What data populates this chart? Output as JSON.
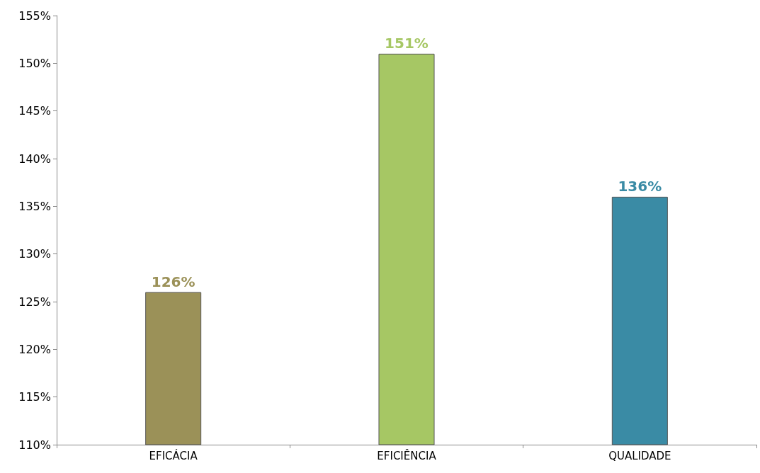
{
  "chart_data": {
    "type": "bar",
    "categories": [
      "EFICÁCIA",
      "EFICIÊNCIA",
      "QUALIDADE"
    ],
    "values": [
      126,
      151,
      136
    ],
    "colors": [
      "#9b9158",
      "#a6c764",
      "#3a8ba5"
    ],
    "value_labels": [
      "126%",
      "151%",
      "136%"
    ],
    "ylim": [
      110,
      155
    ],
    "yticks": [
      {
        "value": 110,
        "label": "110%"
      },
      {
        "value": 115,
        "label": "115%"
      },
      {
        "value": 120,
        "label": "120%"
      },
      {
        "value": 125,
        "label": "125%"
      },
      {
        "value": 130,
        "label": "130%"
      },
      {
        "value": 135,
        "label": "135%"
      },
      {
        "value": 140,
        "label": "140%"
      },
      {
        "value": 145,
        "label": "145%"
      },
      {
        "value": 150,
        "label": "150%"
      },
      {
        "value": 155,
        "label": "155%"
      }
    ],
    "grid": false
  }
}
